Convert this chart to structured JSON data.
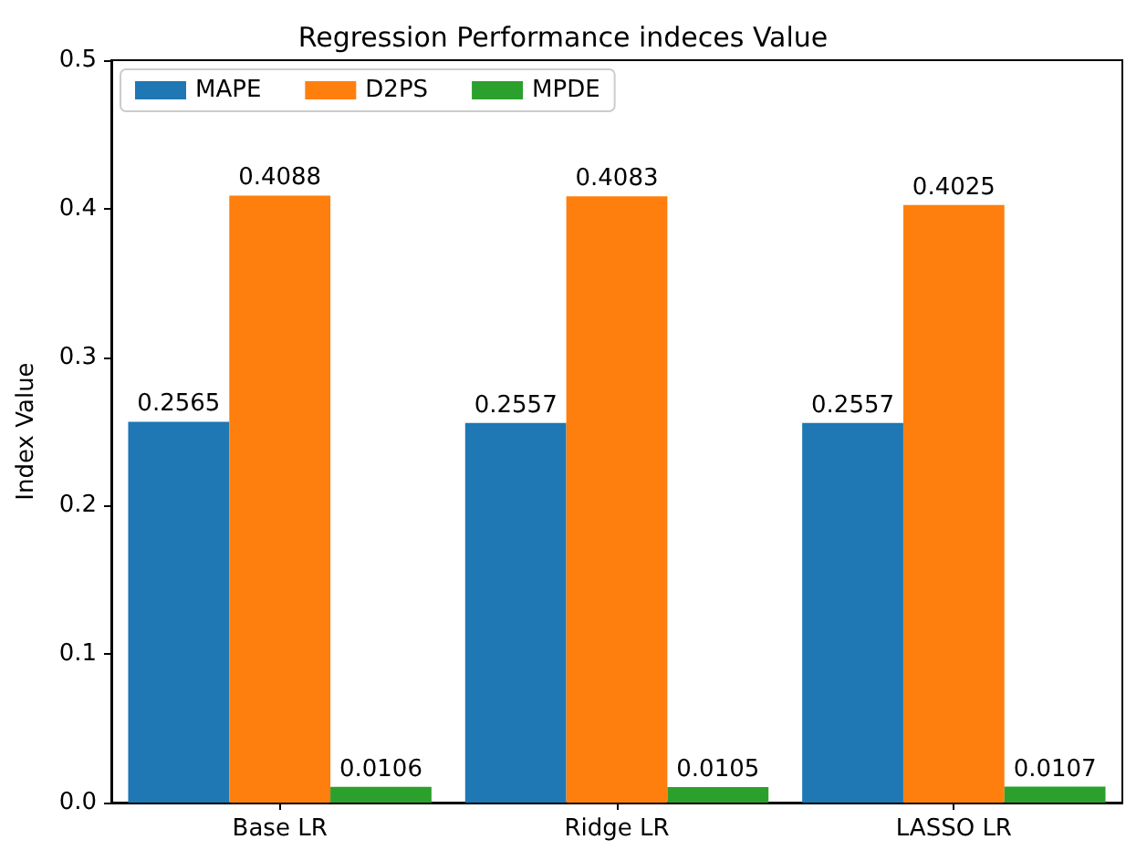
{
  "chart_data": {
    "type": "bar",
    "title": "Regression Performance indeces Value",
    "ylabel": "Index Value",
    "categories": [
      "Base LR",
      "Ridge LR",
      "LASSO LR"
    ],
    "series": [
      {
        "name": "MAPE",
        "color": "#1f77b4",
        "values": [
          0.2565,
          0.2557,
          0.2557
        ]
      },
      {
        "name": "D2PS",
        "color": "#ff7f0e",
        "values": [
          0.4088,
          0.4083,
          0.4025
        ]
      },
      {
        "name": "MPDE",
        "color": "#2ca02c",
        "values": [
          0.0106,
          0.0105,
          0.0107
        ]
      }
    ],
    "ylim": [
      0,
      0.5
    ],
    "yticks": [
      {
        "value": 0,
        "label": "0.0"
      },
      {
        "value": 0.1,
        "label": "0.1"
      },
      {
        "value": 0.2,
        "label": "0.2"
      },
      {
        "value": 0.3,
        "label": "0.3"
      },
      {
        "value": 0.4,
        "label": "0.4"
      },
      {
        "value": 0.5,
        "label": "0.5"
      }
    ],
    "data_labels": true,
    "legend": "top left",
    "grid": false
  }
}
